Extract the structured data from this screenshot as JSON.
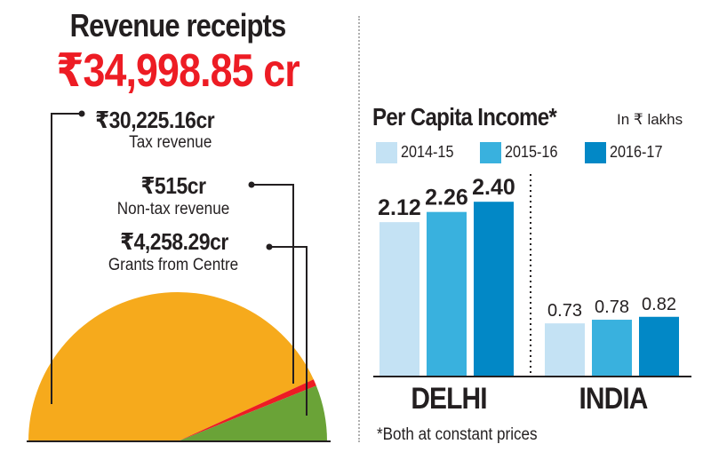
{
  "revenue": {
    "title": "Revenue receipts",
    "total": "₹34,998.85 cr",
    "components": [
      {
        "value": "₹30,225.16cr",
        "label": "Tax revenue",
        "amount": 30225.16,
        "color": "#f6aa1c"
      },
      {
        "value": "₹515cr",
        "label": "Non-tax revenue",
        "amount": 515,
        "color": "#ed1c24"
      },
      {
        "value": "₹4,258.29cr",
        "label": "Grants from Centre",
        "amount": 4258.29,
        "color": "#6aa337"
      }
    ]
  },
  "per_capita": {
    "title": "Per Capita Income*",
    "unit": "In ₹ lakhs",
    "footnote": "*Both at constant prices"
  },
  "chart_data": [
    {
      "type": "pie",
      "title": "Revenue receipts",
      "labels": [
        "Tax revenue",
        "Non-tax revenue",
        "Grants from Centre"
      ],
      "values": [
        30225.16,
        515,
        4258.29
      ],
      "colors": [
        "#f6aa1c",
        "#ed1c24",
        "#6aa337"
      ]
    },
    {
      "type": "bar",
      "title": "Per Capita Income*",
      "ylabel": "In ₹ lakhs",
      "categories": [
        "DELHI",
        "INDIA"
      ],
      "series": [
        {
          "name": "2014-15",
          "values": [
            2.12,
            0.73
          ],
          "labels": [
            "2.12",
            "0.73"
          ],
          "color": "#c4e2f4"
        },
        {
          "name": "2015-16",
          "values": [
            2.26,
            0.78
          ],
          "labels": [
            "2.26",
            "0.78"
          ],
          "color": "#39b1de"
        },
        {
          "name": "2016-17",
          "values": [
            2.4,
            0.82
          ],
          "labels": [
            "2.40",
            "0.82"
          ],
          "color": "#0288c6"
        }
      ],
      "legend": "top",
      "grid": false
    }
  ]
}
